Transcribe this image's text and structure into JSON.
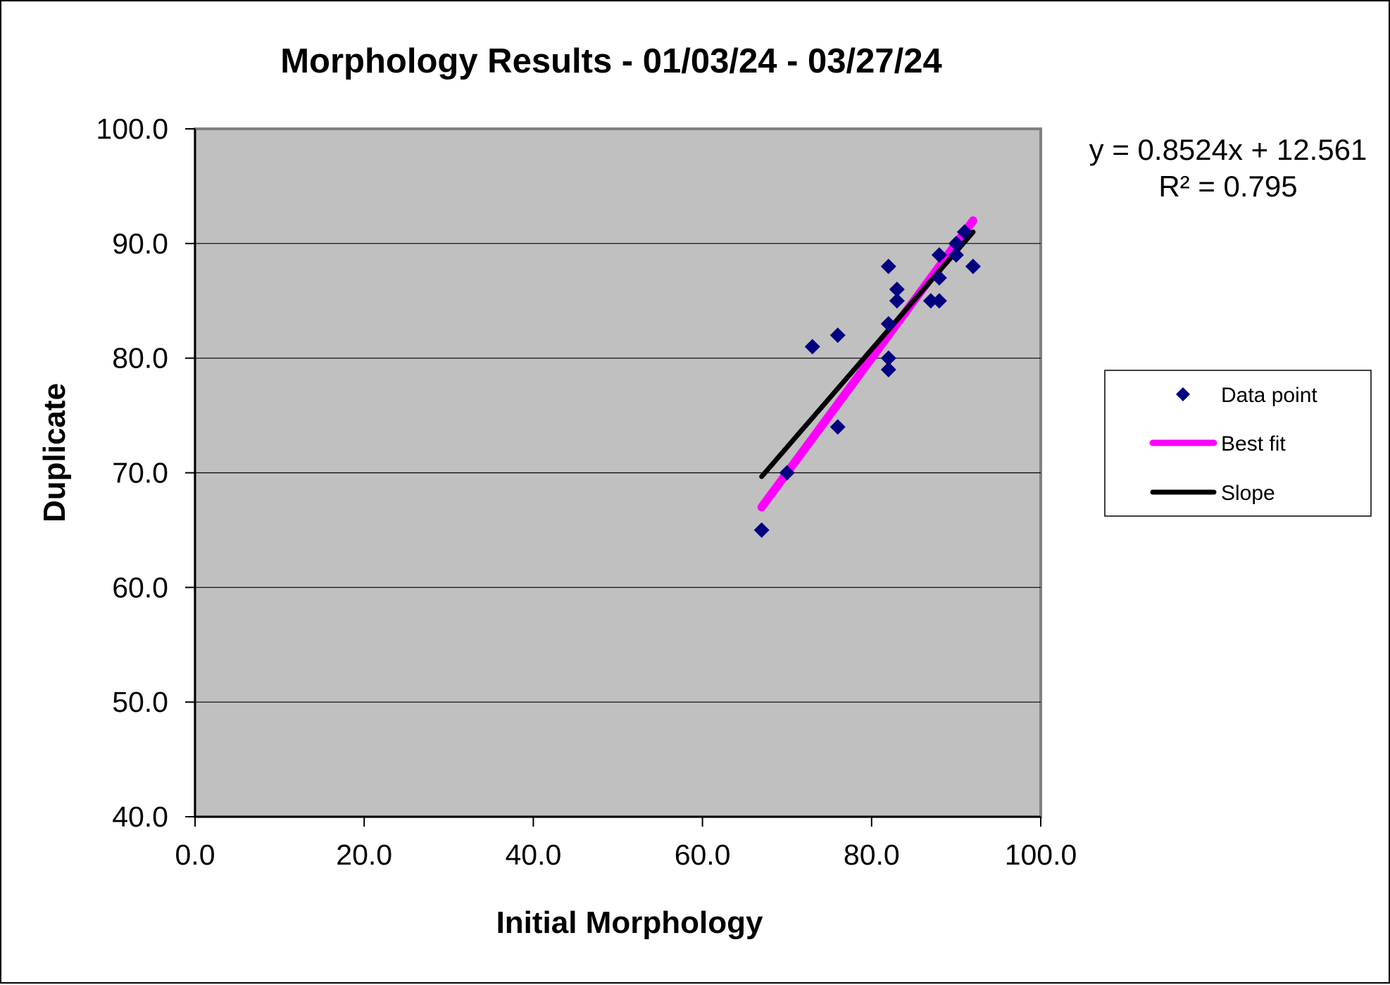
{
  "chart_data": {
    "type": "scatter",
    "title": "Morphology Results - 01/03/24 - 03/27/24",
    "xlabel": "Initial Morphology",
    "ylabel": "Duplicate",
    "xlim": [
      0,
      100
    ],
    "ylim": [
      40,
      100
    ],
    "x_ticks": [
      "0.0",
      "20.0",
      "40.0",
      "60.0",
      "80.0",
      "100.0"
    ],
    "y_ticks": [
      "40.0",
      "50.0",
      "60.0",
      "70.0",
      "80.0",
      "90.0",
      "100.0"
    ],
    "grid": "horizontal major gridlines",
    "plot_background": "#c0c0c0",
    "legend_position": "right",
    "series": [
      {
        "name": "Data point",
        "kind": "scatter",
        "marker": "diamond",
        "color": "#000080",
        "points": [
          [
            67,
            65
          ],
          [
            70,
            70
          ],
          [
            73,
            81
          ],
          [
            76,
            82
          ],
          [
            76,
            74
          ],
          [
            82,
            88
          ],
          [
            82,
            83
          ],
          [
            82,
            80
          ],
          [
            82,
            79
          ],
          [
            83,
            86
          ],
          [
            83,
            85
          ],
          [
            87,
            85
          ],
          [
            88,
            89
          ],
          [
            88,
            87
          ],
          [
            88,
            85
          ],
          [
            90,
            90
          ],
          [
            90,
            89
          ],
          [
            91,
            91
          ],
          [
            92,
            88
          ]
        ]
      },
      {
        "name": "Best fit",
        "kind": "line",
        "color": "#ff00ff",
        "points": [
          [
            67,
            67
          ],
          [
            92,
            92
          ]
        ]
      },
      {
        "name": "Slope",
        "kind": "line",
        "color": "#000000",
        "points": [
          [
            67,
            69.67
          ],
          [
            92,
            91.0
          ]
        ]
      }
    ],
    "annotation": {
      "equation": "y = 0.8524x + 12.561",
      "r_squared": "R² = 0.795"
    }
  }
}
